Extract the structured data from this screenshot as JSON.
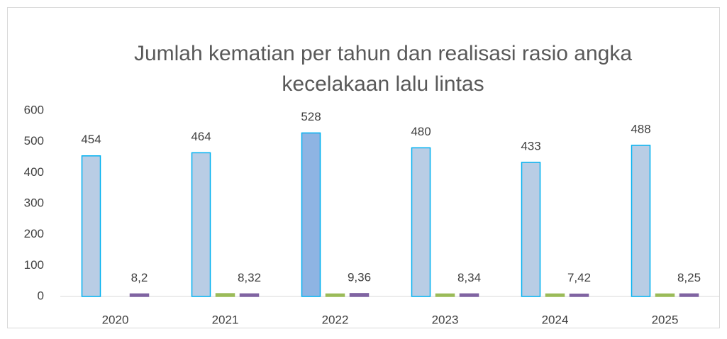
{
  "chart_data": {
    "type": "bar",
    "title_lines": [
      "Jumlah kematian per tahun dan realisasi rasio angka",
      "kecelakaan lalu lintas"
    ],
    "categories": [
      "2020",
      "2021",
      "2022",
      "2023",
      "2024",
      "2025"
    ],
    "series": [
      {
        "color": "#b9cde5",
        "edge": "#00b0f0",
        "colors": [
          "#b9cde5",
          "#b9cde5",
          "#8eb4e3",
          "#b9cde5",
          "#b9cde5",
          "#b9cde5"
        ],
        "values": [
          454,
          464,
          528,
          480,
          433,
          488
        ],
        "labels": true
      },
      {
        "color": "#9bbb59",
        "values": [
          null,
          9,
          8,
          8,
          8,
          8
        ],
        "labels": false
      },
      {
        "color": "#8064a2",
        "values": [
          8.2,
          8.32,
          9.36,
          8.34,
          7.42,
          8.25
        ],
        "value_labels": [
          "8,2",
          "8,32",
          "9,36",
          "8,34",
          "7,42",
          "8,25"
        ],
        "labels": true
      }
    ],
    "ylim": [
      0,
      600
    ],
    "yticks": [
      0,
      100,
      200,
      300,
      400,
      500,
      600
    ],
    "grid": false
  }
}
